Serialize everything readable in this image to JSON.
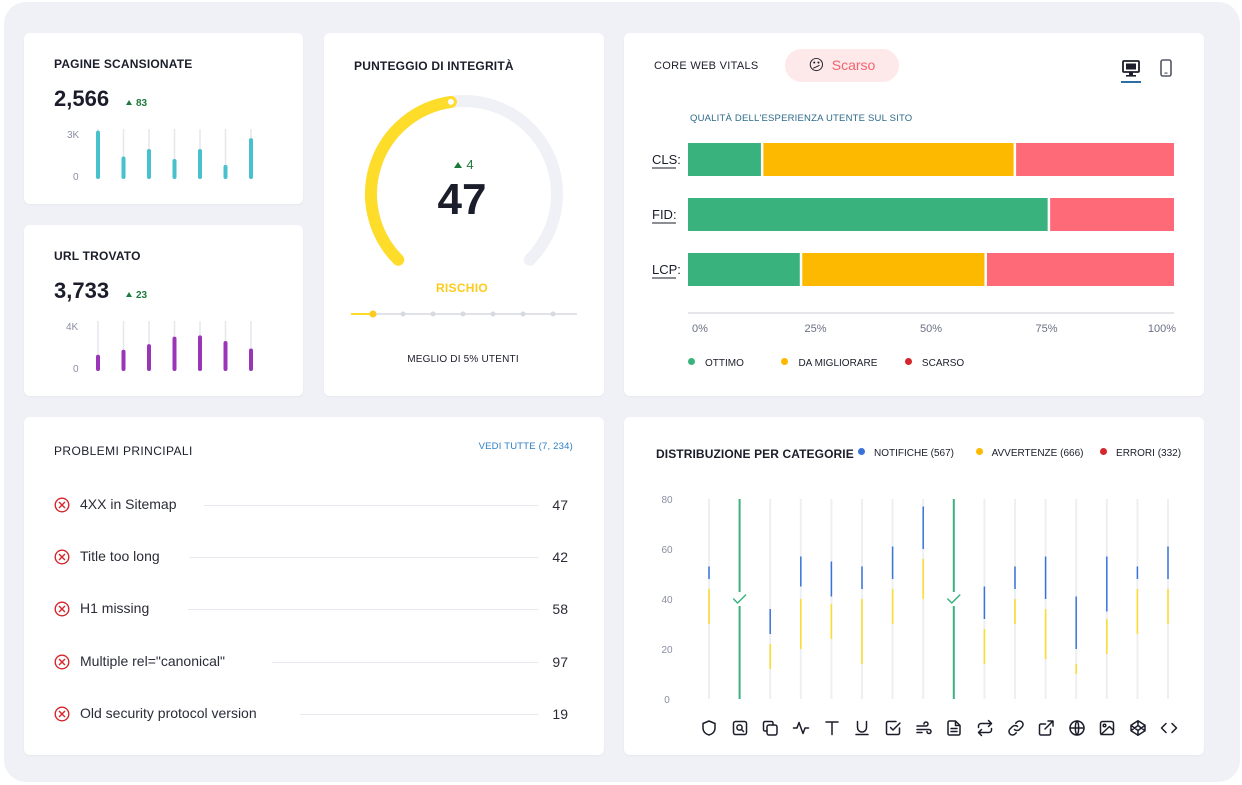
{
  "colors": {
    "teal": "#47c1cc",
    "purple": "#9b35b7",
    "gauge_yellow": "#fddc2a",
    "good": "#39b27e",
    "needs": "#fdb900",
    "poor": "#fe6a77",
    "blue": "#3a73d8",
    "red": "#d3262d",
    "link": "#2c7fc4"
  },
  "pages_scanned": {
    "title": "PAGINE SCANSIONATE",
    "value": "2,566",
    "delta": "83",
    "y_max_label": "3K",
    "y_min_label": "0",
    "chart_data": {
      "type": "bar",
      "ylim": [
        0,
        3000
      ],
      "values": [
        2900,
        1350,
        1800,
        1200,
        1800,
        850,
        2450
      ]
    }
  },
  "url_found": {
    "title": "URL TROVATO",
    "value": "3,733",
    "delta": "23",
    "y_max_label": "4K",
    "y_min_label": "0",
    "chart_data": {
      "type": "bar",
      "ylim": [
        0,
        4000
      ],
      "values": [
        1300,
        1700,
        2150,
        2750,
        2850,
        2400,
        1800
      ]
    }
  },
  "integrity": {
    "title": "PUNTEGGIO DI INTEGRITÀ",
    "delta": "4",
    "score": "47",
    "level": "RISCHIO",
    "footer": "MEGLIO DI 5% UTENTI",
    "progress": 0.47,
    "step_count": 8,
    "active_step": 0
  },
  "cwv": {
    "title": "CORE WEB VITALS",
    "badge_emoji": "😕",
    "badge_label": "Scarso",
    "subtitle": "QUALITÀ DELL'ESPERIENZA UTENTE SUL SITO",
    "device_desktop": "desktop-icon",
    "device_mobile": "mobile-icon",
    "chart_data": {
      "type": "bar",
      "orientation": "horizontal",
      "stacked": true,
      "categories": [
        "CLS:",
        "FID:",
        "LCP:"
      ],
      "series": [
        {
          "name": "OTTIMO",
          "values": [
            15,
            74,
            23
          ]
        },
        {
          "name": "DA MIGLIORARE",
          "values": [
            52,
            0,
            38
          ]
        },
        {
          "name": "SCARSO",
          "values": [
            33,
            26,
            39
          ]
        }
      ],
      "x_ticks": [
        "0%",
        "25%",
        "50%",
        "75%",
        "100%"
      ],
      "xlim": [
        0,
        100
      ]
    },
    "legend": [
      {
        "label": "OTTIMO",
        "color": "#39b27e"
      },
      {
        "label": "DA MIGLIORARE",
        "color": "#fdb900"
      },
      {
        "label": "SCARSO",
        "color": "#d3262d"
      }
    ]
  },
  "problems": {
    "title": "PROBLEMI PRINCIPALI",
    "view_all": "VEDI TUTTE (7, 234)",
    "items": [
      {
        "label": "4XX in Sitemap",
        "count": "47"
      },
      {
        "label": "Title too long",
        "count": "42"
      },
      {
        "label": "H1 missing",
        "count": "58"
      },
      {
        "label": "Multiple rel=\"canonical\"",
        "count": "97"
      },
      {
        "label": "Old security protocol version",
        "count": "19"
      }
    ]
  },
  "distribution": {
    "title": "DISTRIBUZIONE PER CATEGORIE",
    "legend": [
      {
        "label": "NOTIFICHE (567)",
        "color": "#3a73d8"
      },
      {
        "label": "AVVERTENZE (666)",
        "color": "#fddc2a"
      },
      {
        "label": "ERRORI (332)",
        "color": "#d3262d"
      }
    ],
    "y_ticks": [
      "80",
      "60",
      "40",
      "20",
      "0"
    ],
    "chart_data": {
      "type": "bar",
      "ylim": [
        0,
        80
      ],
      "series": [
        {
          "name": "NOTIFICHE (567)",
          "ranges": [
            [
              53,
              48
            ],
            null,
            [
              36,
              26
            ],
            [
              57,
              45
            ],
            [
              55,
              41
            ],
            [
              53,
              44
            ],
            [
              61,
              48
            ],
            [
              77,
              60
            ],
            null,
            [
              45,
              32
            ],
            [
              53,
              44
            ],
            [
              57,
              40
            ],
            [
              41,
              20
            ],
            [
              57,
              35
            ],
            [
              53,
              48
            ],
            [
              61,
              48
            ]
          ]
        },
        {
          "name": "AVVERTENZE (666)",
          "ranges": [
            [
              44,
              30
            ],
            null,
            [
              22,
              12
            ],
            [
              40,
              20
            ],
            [
              38,
              24
            ],
            [
              40,
              14
            ],
            [
              44,
              30
            ],
            [
              56,
              40
            ],
            null,
            [
              28,
              14
            ],
            [
              40,
              30
            ],
            [
              36,
              16
            ],
            [
              14,
              10
            ],
            [
              32,
              18
            ],
            [
              44,
              26
            ],
            [
              44,
              30
            ]
          ]
        }
      ],
      "full_green_columns": [
        1,
        8
      ]
    },
    "tools": [
      "shield-icon",
      "search-page-icon",
      "copy-icon",
      "pulse-icon",
      "text-icon",
      "underline-icon",
      "checkbox-icon",
      "wind-icon",
      "document-icon",
      "repeat-icon",
      "link-icon",
      "external-link-icon",
      "globe-icon",
      "image-icon",
      "codepen-icon",
      "code-icon"
    ]
  }
}
